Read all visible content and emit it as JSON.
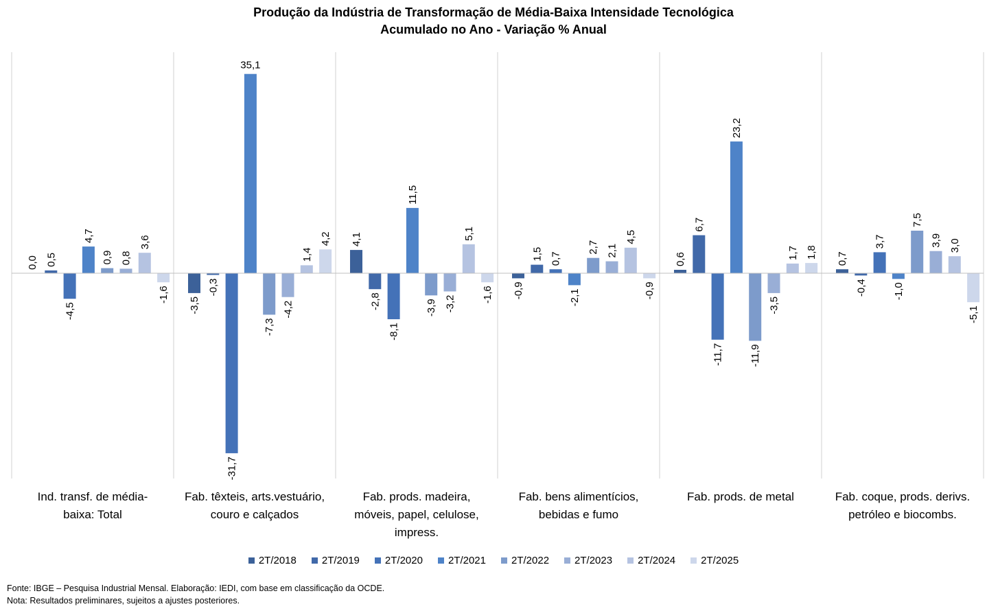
{
  "chart_data": {
    "type": "bar",
    "title": "Produção da Indústria de Transformação de Média-Baixa Intensidade Tecnológica",
    "subtitle": "Acumulado no Ano - Variação % Anual",
    "categories": [
      [
        "Ind. transf. de média-",
        "baixa: Total"
      ],
      [
        "Fab. têxteis, arts.vestuário,",
        "couro e calçados"
      ],
      [
        "Fab. prods. madeira,",
        "móveis, papel, celulose,",
        "impress."
      ],
      [
        "Fab. bens alimentícios,",
        "bebidas e fumo"
      ],
      [
        "Fab. prods. de metal"
      ],
      [
        "Fab. coque, prods. derivs.",
        "petróleo e biocombs."
      ]
    ],
    "ylim": [
      -37,
      38
    ],
    "series": [
      {
        "name": "2T/2018",
        "color": "#3C6199",
        "values": [
          0.0,
          -3.5,
          4.1,
          -0.9,
          0.6,
          0.7
        ],
        "labels": [
          "0,0",
          "-3,5",
          "4,1",
          "-0,9",
          "0,6",
          "0,7"
        ]
      },
      {
        "name": "2T/2019",
        "color": "#4169A9",
        "values": [
          0.5,
          -0.3,
          -2.8,
          1.5,
          6.7,
          -0.4
        ],
        "labels": [
          "0,5",
          "-0,3",
          "-2,8",
          "1,5",
          "6,7",
          "-0,4"
        ]
      },
      {
        "name": "2T/2020",
        "color": "#4472B8",
        "values": [
          -4.5,
          -31.7,
          -8.1,
          0.7,
          -11.7,
          3.7
        ],
        "labels": [
          "-4,5",
          "-31,7",
          "-8,1",
          "0,7",
          "-11,7",
          "3,7"
        ]
      },
      {
        "name": "2T/2021",
        "color": "#4E83C8",
        "values": [
          4.7,
          35.1,
          11.5,
          -2.1,
          23.2,
          -1.0
        ],
        "labels": [
          "4,7",
          "35,1",
          "11,5",
          "-2,1",
          "23,2",
          "-1,0"
        ]
      },
      {
        "name": "2T/2022",
        "color": "#7D9BCB",
        "values": [
          0.9,
          -7.3,
          -3.9,
          2.7,
          -11.9,
          7.5
        ],
        "labels": [
          "0,9",
          "-7,3",
          "-3,9",
          "2,7",
          "-11,9",
          "7,5"
        ]
      },
      {
        "name": "2T/2023",
        "color": "#99AED6",
        "values": [
          0.8,
          -4.2,
          -3.2,
          2.1,
          -3.5,
          3.9
        ],
        "labels": [
          "0,8",
          "-4,2",
          "-3,2",
          "2,1",
          "-3,5",
          "3,9"
        ]
      },
      {
        "name": "2T/2024",
        "color": "#B5C3E1",
        "values": [
          3.6,
          1.4,
          5.1,
          4.5,
          1.7,
          3.0
        ],
        "labels": [
          "3,6",
          "1,4",
          "5,1",
          "4,5",
          "1,7",
          "3,0"
        ]
      },
      {
        "name": "2T/2025",
        "color": "#CDD7EB",
        "values": [
          -1.6,
          4.2,
          -1.6,
          -0.9,
          1.8,
          -5.1
        ],
        "labels": [
          "-1,6",
          "4,2",
          "-1,6",
          "-0,9",
          "1,8",
          "-5,1"
        ]
      }
    ],
    "legend": "bottom",
    "grid": false
  },
  "footer": {
    "source": "Fonte: IBGE – Pesquisa Industrial Mensal. Elaboração: IEDI, com base em classificação da OCDE.",
    "note": "Nota: Resultados preliminares, sujeitos a ajustes posteriores."
  }
}
